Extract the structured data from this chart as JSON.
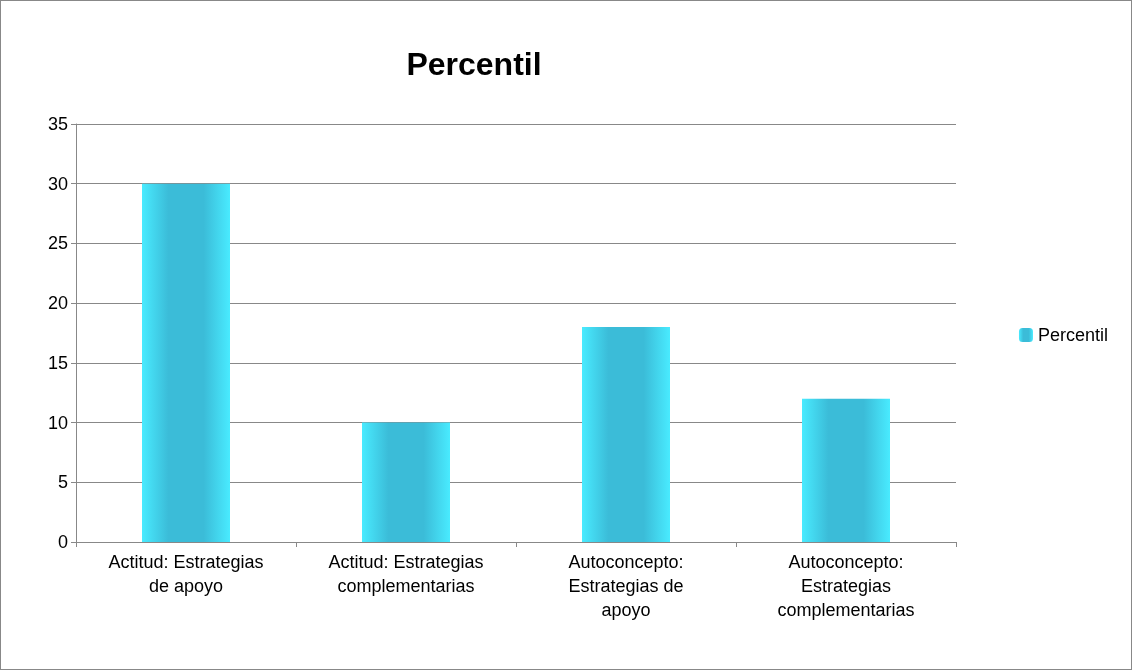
{
  "chart_data": {
    "type": "bar",
    "title": "Percentil",
    "categories": [
      "Actitud: Estrategias\nde apoyo",
      "Actitud: Estrategias\ncomplementarias",
      "Autoconcepto:\nEstrategias de\napoyo",
      "Autoconcepto:\nEstrategias\ncomplementarias"
    ],
    "series": [
      {
        "name": "Percentil",
        "color": "#3bbcd8",
        "values": [
          30,
          10,
          18,
          12
        ]
      }
    ],
    "ylim": [
      0,
      35
    ],
    "yticks": [
      0,
      5,
      10,
      15,
      20,
      25,
      30,
      35
    ],
    "grid": "y",
    "legend": "right"
  }
}
